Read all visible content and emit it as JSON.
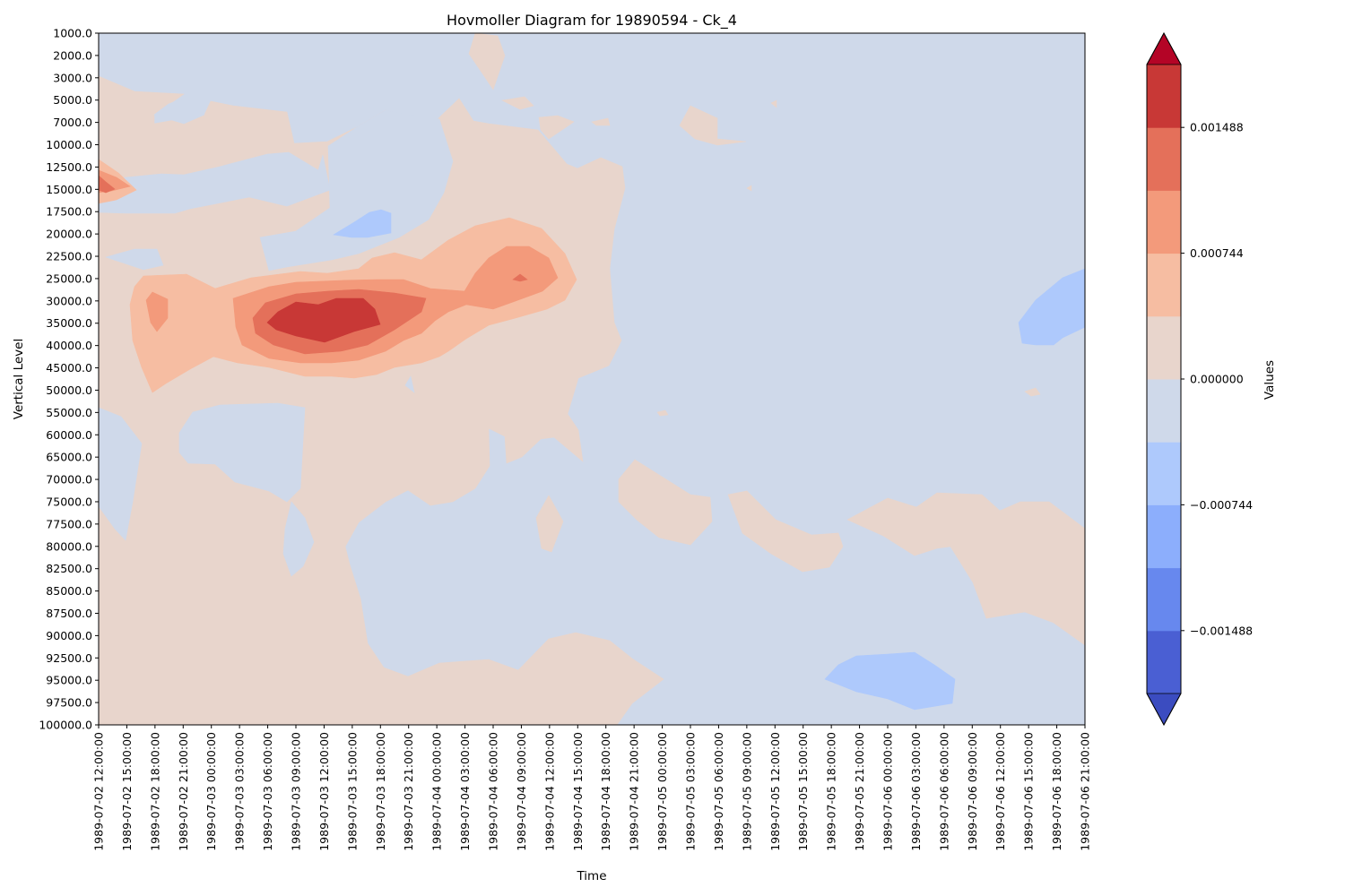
{
  "chart_data": {
    "type": "heatmap",
    "subtype": "filled-contour (Hovmoller)",
    "title": "Hovmoller Diagram for 19890594 - Ck_4",
    "xlabel": "Time",
    "ylabel": "Vertical Level",
    "colorbar_label": "Values",
    "colormap": "coolwarm",
    "colorbar_extend": "both",
    "colorbar_ticks": [
      "0.001488",
      "0.000744",
      "0.000000",
      "−0.000744",
      "−0.001488"
    ],
    "levels": [
      -0.00186,
      -0.001488,
      -0.001116,
      -0.000744,
      -0.000372,
      0.0,
      0.000372,
      0.000744,
      0.001116,
      0.001488,
      0.00186
    ],
    "band_colors": [
      "#3b4cc0",
      "#4a5fd3",
      "#6788ee",
      "#8caefc",
      "#aec9fc",
      "#cfd9ea",
      "#e8d5cc",
      "#f6bda2",
      "#f39a7b",
      "#e4705a",
      "#c83836",
      "#b40426"
    ],
    "x_time_labels": [
      "1989-07-02 12:00:00",
      "1989-07-02 15:00:00",
      "1989-07-02 18:00:00",
      "1989-07-02 21:00:00",
      "1989-07-03 00:00:00",
      "1989-07-03 03:00:00",
      "1989-07-03 06:00:00",
      "1989-07-03 09:00:00",
      "1989-07-03 12:00:00",
      "1989-07-03 15:00:00",
      "1989-07-03 18:00:00",
      "1989-07-03 21:00:00",
      "1989-07-04 00:00:00",
      "1989-07-04 03:00:00",
      "1989-07-04 06:00:00",
      "1989-07-04 09:00:00",
      "1989-07-04 12:00:00",
      "1989-07-04 15:00:00",
      "1989-07-04 18:00:00",
      "1989-07-04 21:00:00",
      "1989-07-05 00:00:00",
      "1989-07-05 03:00:00",
      "1989-07-05 06:00:00",
      "1989-07-05 09:00:00",
      "1989-07-05 12:00:00",
      "1989-07-05 15:00:00",
      "1989-07-05 18:00:00",
      "1989-07-05 21:00:00",
      "1989-07-06 00:00:00",
      "1989-07-06 03:00:00",
      "1989-07-06 06:00:00",
      "1989-07-06 09:00:00",
      "1989-07-06 12:00:00",
      "1989-07-06 15:00:00",
      "1989-07-06 18:00:00",
      "1989-07-06 21:00:00"
    ],
    "y_levels": [
      "1000.0",
      "2000.0",
      "3000.0",
      "5000.0",
      "7000.0",
      "10000.0",
      "12500.0",
      "15000.0",
      "17500.0",
      "20000.0",
      "22500.0",
      "25000.0",
      "30000.0",
      "35000.0",
      "40000.0",
      "45000.0",
      "50000.0",
      "55000.0",
      "60000.0",
      "65000.0",
      "70000.0",
      "75000.0",
      "77500.0",
      "80000.0",
      "82500.0",
      "85000.0",
      "87500.0",
      "90000.0",
      "92500.0",
      "95000.0",
      "97500.0",
      "100000.0"
    ],
    "y_inverted": true,
    "grid": false
  }
}
